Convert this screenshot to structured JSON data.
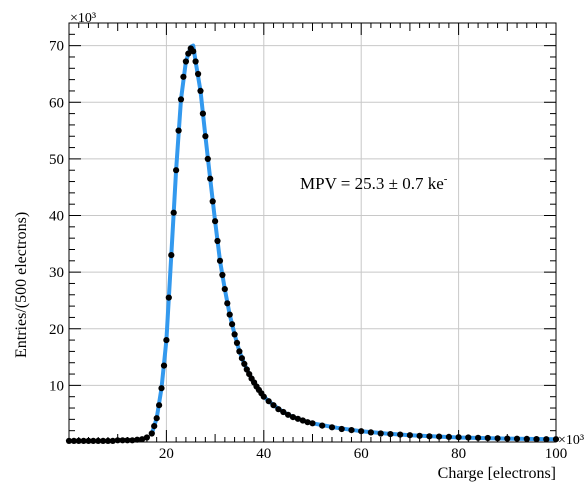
{
  "chart_data": {
    "type": "scatter",
    "xlabel": "Charge [electrons]",
    "ylabel": "Entries/(500 electrons)",
    "x_multiplier": "×10³",
    "y_multiplier": "×10³",
    "xlim": [
      0,
      100
    ],
    "ylim": [
      0,
      74
    ],
    "x_ticks": [
      20,
      40,
      60,
      80,
      100
    ],
    "y_ticks": [
      10,
      20,
      30,
      40,
      50,
      60,
      70
    ],
    "grid": true,
    "annotation": {
      "text": "MPV =  25.3 ± 0.7 ke",
      "superscript": "-"
    },
    "series": [
      {
        "kind": "data-points",
        "x": [
          0,
          1,
          2,
          3,
          4,
          5,
          6,
          7,
          8,
          9,
          10,
          11,
          12,
          13,
          14,
          15,
          16,
          17,
          17.5,
          18,
          18.5,
          19,
          19.5,
          20,
          20.5,
          21,
          21.5,
          22,
          22.5,
          23,
          23.5,
          24,
          24.5,
          25,
          25.5,
          26,
          26.5,
          27,
          27.5,
          28,
          28.5,
          29,
          29.5,
          30,
          30.5,
          31,
          31.5,
          32,
          32.5,
          33,
          33.5,
          34,
          34.5,
          35,
          35.5,
          36,
          36.5,
          37,
          37.5,
          38,
          38.5,
          39,
          39.5,
          40,
          41,
          42,
          43,
          44,
          45,
          46,
          47,
          48,
          49,
          50,
          52,
          54,
          56,
          58,
          60,
          62,
          64,
          66,
          68,
          70,
          72,
          74,
          76,
          78,
          80,
          82,
          84,
          86,
          88,
          90,
          92,
          94,
          96,
          98,
          100
        ],
        "y": [
          0.2,
          0.2,
          0.2,
          0.2,
          0.2,
          0.2,
          0.2,
          0.2,
          0.2,
          0.2,
          0.3,
          0.3,
          0.3,
          0.3,
          0.4,
          0.5,
          0.8,
          1.5,
          2.8,
          4.2,
          6.5,
          9.5,
          13.5,
          18.0,
          25.5,
          33.0,
          40.5,
          48.0,
          55.0,
          60.5,
          64.5,
          67.2,
          68.6,
          69.5,
          69.0,
          67.2,
          65.0,
          62.0,
          58.0,
          54.0,
          50.0,
          46.5,
          42.5,
          39.0,
          35.5,
          32.0,
          29.5,
          27.0,
          24.5,
          22.5,
          20.8,
          19.0,
          17.5,
          16.0,
          14.8,
          13.8,
          12.8,
          12.0,
          11.2,
          10.5,
          9.8,
          9.2,
          8.6,
          8.0,
          7.2,
          6.5,
          5.8,
          5.3,
          4.8,
          4.4,
          4.1,
          3.8,
          3.5,
          3.3,
          2.9,
          2.6,
          2.3,
          2.1,
          1.9,
          1.7,
          1.5,
          1.4,
          1.3,
          1.2,
          1.1,
          1.0,
          0.95,
          0.9,
          0.85,
          0.8,
          0.75,
          0.7,
          0.65,
          0.6,
          0.58,
          0.55,
          0.52,
          0.5,
          0.5
        ],
        "color": "#000000"
      },
      {
        "kind": "fit-curve",
        "x": [
          17,
          18,
          19,
          20,
          21,
          22,
          23,
          24,
          25,
          25.5,
          26,
          27,
          28,
          29,
          30,
          31,
          32,
          33,
          34,
          35,
          36,
          37,
          38,
          39,
          40,
          42,
          44,
          46,
          48,
          50,
          55,
          60,
          65,
          70,
          80,
          90,
          100
        ],
        "y": [
          1.5,
          4.2,
          9.5,
          18.0,
          33.0,
          48.0,
          60.5,
          67.2,
          69.8,
          70.0,
          67.2,
          62.0,
          54.0,
          46.5,
          39.0,
          32.0,
          27.0,
          22.5,
          19.0,
          16.0,
          13.8,
          12.0,
          10.5,
          9.2,
          8.0,
          6.5,
          5.3,
          4.4,
          3.8,
          3.3,
          2.5,
          1.9,
          1.5,
          1.2,
          0.8,
          0.6,
          0.5
        ],
        "color": "#3399ee"
      }
    ]
  }
}
